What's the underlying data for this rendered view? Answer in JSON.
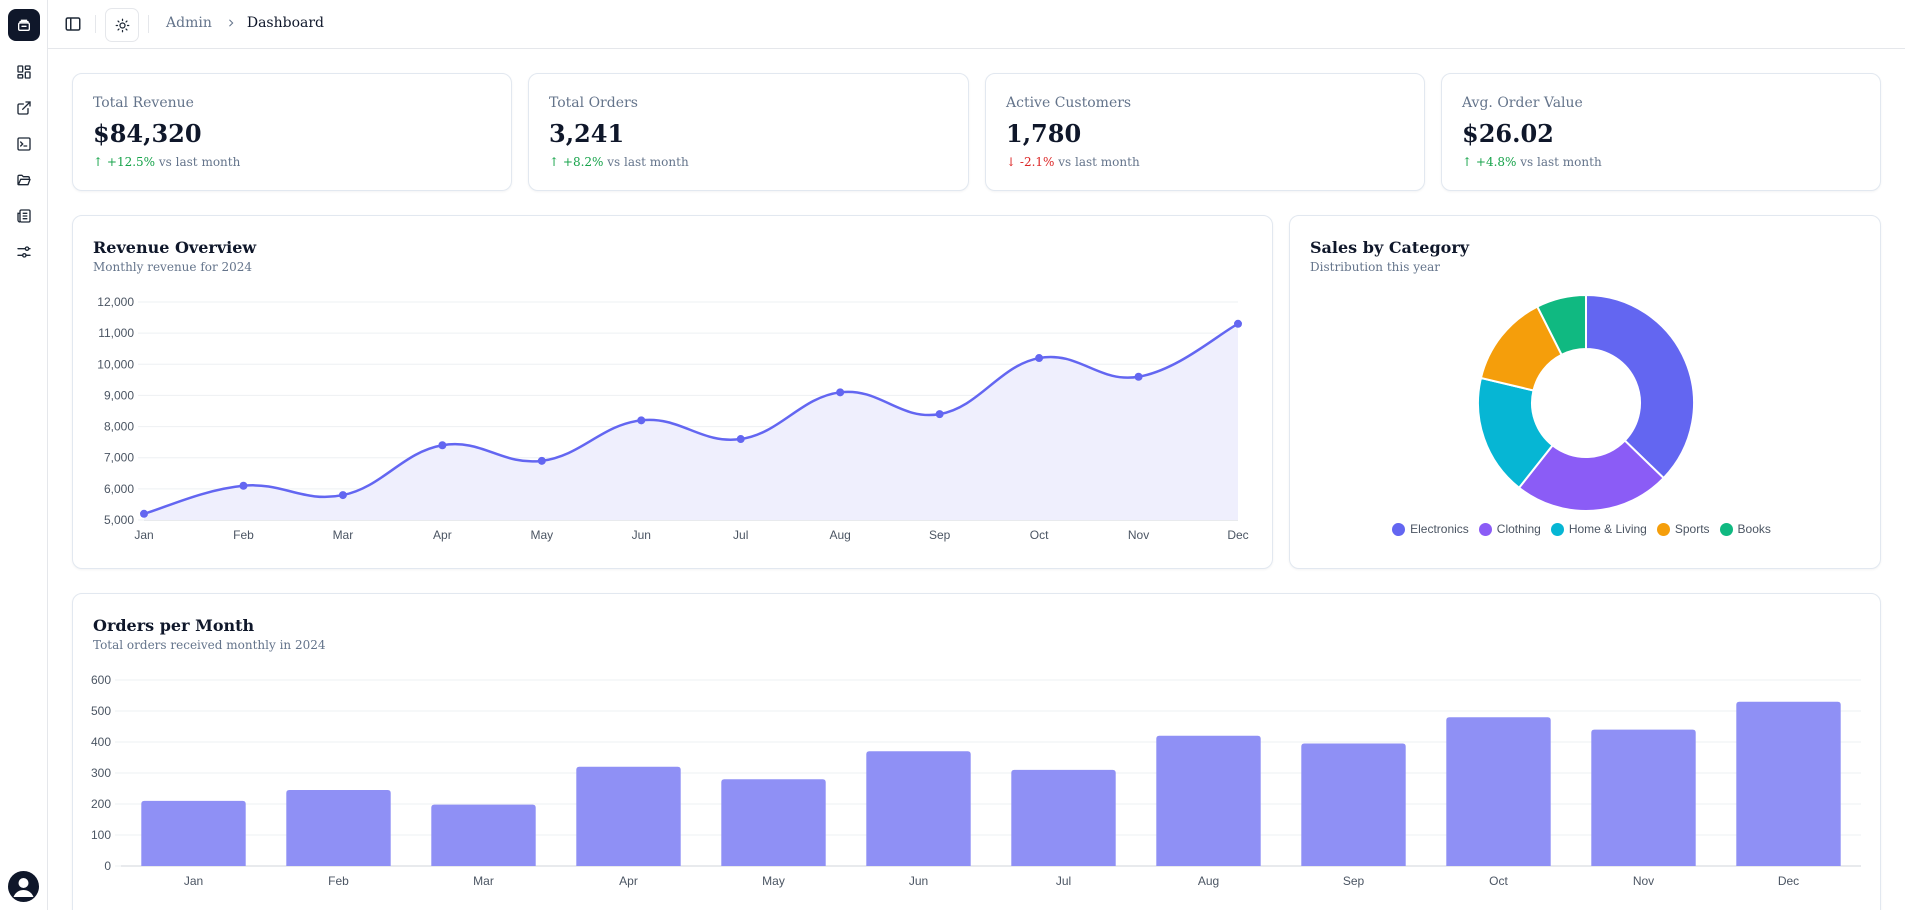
{
  "breadcrumb": {
    "parent": "Admin",
    "current": "Dashboard"
  },
  "stats": [
    {
      "label": "Total Revenue",
      "value": "$84,320",
      "arrow": "↑",
      "delta": "+12.5%",
      "trend": "up",
      "suffix": "vs last month"
    },
    {
      "label": "Total Orders",
      "value": "3,241",
      "arrow": "↑",
      "delta": "+8.2%",
      "trend": "up",
      "suffix": "vs last month"
    },
    {
      "label": "Active Customers",
      "value": "1,780",
      "arrow": "↓",
      "delta": "-2.1%",
      "trend": "down",
      "suffix": "vs last month"
    },
    {
      "label": "Avg. Order Value",
      "value": "$26.02",
      "arrow": "↑",
      "delta": "+4.8%",
      "trend": "up",
      "suffix": "vs last month"
    }
  ],
  "revenue": {
    "title": "Revenue Overview",
    "subtitle": "Monthly revenue for 2024"
  },
  "category": {
    "title": "Sales by Category",
    "subtitle": "Distribution this year"
  },
  "orders": {
    "title": "Orders per Month",
    "subtitle": "Total orders received monthly in 2024"
  },
  "colors": {
    "accent": "#6366f1",
    "bar": "#8f90f5",
    "area": "#efeffd",
    "up": "#16a34a",
    "down": "#dc2626"
  },
  "icons": [
    "layout-grid-icon",
    "external-link-icon",
    "terminal-icon",
    "folder-open-icon",
    "newspaper-icon",
    "sliders-icon"
  ],
  "chart_data": [
    {
      "type": "line",
      "title": "Revenue Overview",
      "subtitle": "Monthly revenue for 2024",
      "categories": [
        "Jan",
        "Feb",
        "Mar",
        "Apr",
        "May",
        "Jun",
        "Jul",
        "Aug",
        "Sep",
        "Oct",
        "Nov",
        "Dec"
      ],
      "values": [
        5200,
        6100,
        5800,
        7400,
        6900,
        8200,
        7600,
        9100,
        8400,
        10200,
        9600,
        11300
      ],
      "ylim": [
        5000,
        12000
      ],
      "yticks": [
        5000,
        6000,
        7000,
        8000,
        9000,
        10000,
        11000,
        12000
      ],
      "ytick_labels": [
        "5,000",
        "6,000",
        "7,000",
        "8,000",
        "9,000",
        "10,000",
        "11,000",
        "12,000"
      ],
      "grid": true,
      "fill": true
    },
    {
      "type": "pie",
      "title": "Sales by Category",
      "subtitle": "Distribution this year",
      "donut": true,
      "labels": [
        "Electronics",
        "Clothing",
        "Home & Living",
        "Sports",
        "Books"
      ],
      "values": [
        35,
        22,
        17,
        13,
        7
      ],
      "colors": [
        "#6366f1",
        "#8b5cf6",
        "#06b6d4",
        "#f59e0b",
        "#10b981"
      ],
      "legend": "bottom"
    },
    {
      "type": "bar",
      "title": "Orders per Month",
      "subtitle": "Total orders received monthly in 2024",
      "categories": [
        "Jan",
        "Feb",
        "Mar",
        "Apr",
        "May",
        "Jun",
        "Jul",
        "Aug",
        "Sep",
        "Oct",
        "Nov",
        "Dec"
      ],
      "values": [
        210,
        245,
        198,
        320,
        280,
        370,
        310,
        420,
        395,
        480,
        440,
        530
      ],
      "ylim": [
        0,
        600
      ],
      "yticks": [
        0,
        100,
        200,
        300,
        400,
        500,
        600
      ],
      "ytick_labels": [
        "0",
        "100",
        "200",
        "300",
        "400",
        "500",
        "600"
      ],
      "grid": true
    }
  ]
}
